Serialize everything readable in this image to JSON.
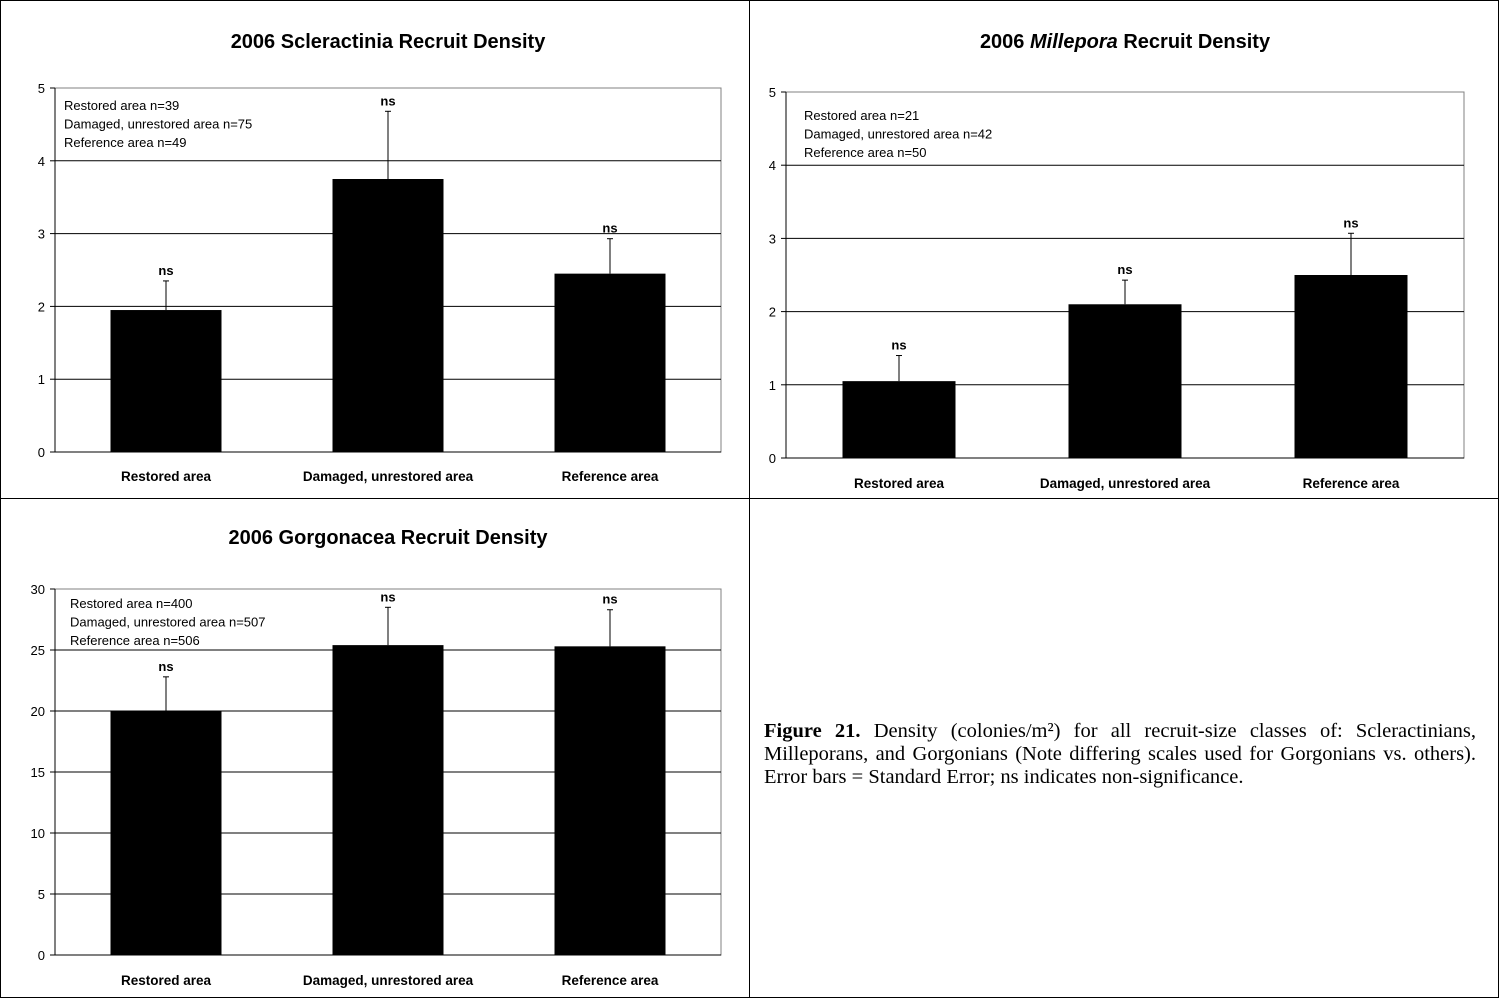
{
  "chart_data": [
    {
      "type": "bar",
      "title_parts": [
        "2006 ",
        "Scleractinia",
        " Recruit Density"
      ],
      "title_italic_index": -1,
      "categories": [
        "Restored area",
        "Damaged, unrestored area",
        "Reference area"
      ],
      "values": [
        1.95,
        3.75,
        2.45
      ],
      "error": [
        0.4,
        0.93,
        0.48
      ],
      "bar_labels": [
        "ns",
        "ns",
        "ns"
      ],
      "ylim": [
        0,
        5
      ],
      "yticks": [
        0,
        1,
        2,
        3,
        4,
        5
      ],
      "annotations": [
        "Restored area n=39",
        "Damaged, unrestored area n=75",
        "Reference area n=49"
      ],
      "grid": true,
      "bar_color": "#000000"
    },
    {
      "type": "bar",
      "title_parts": [
        "2006 ",
        "Millepora",
        " Recruit Density"
      ],
      "title_italic_index": 1,
      "categories": [
        "Restored area",
        "Damaged, unrestored area",
        "Reference area"
      ],
      "values": [
        1.05,
        2.1,
        2.5
      ],
      "error": [
        0.35,
        0.33,
        0.57
      ],
      "bar_labels": [
        "ns",
        "ns",
        "ns"
      ],
      "ylim": [
        0,
        5
      ],
      "yticks": [
        0,
        1,
        2,
        3,
        4,
        5
      ],
      "annotations": [
        "Restored area n=21",
        "Damaged, unrestored area n=42",
        "Reference area n=50"
      ],
      "grid": true,
      "bar_color": "#000000"
    },
    {
      "type": "bar",
      "title_parts": [
        "2006 ",
        "Gorgonacea",
        " Recruit Density"
      ],
      "title_italic_index": -1,
      "categories": [
        "Restored area",
        "Damaged, unrestored area",
        "Reference area"
      ],
      "values": [
        20.0,
        25.4,
        25.3
      ],
      "error": [
        2.8,
        3.1,
        3.0
      ],
      "bar_labels": [
        "ns",
        "ns",
        "ns"
      ],
      "ylim": [
        0,
        30
      ],
      "yticks": [
        0,
        5,
        10,
        15,
        20,
        25,
        30
      ],
      "annotations": [
        "Restored area n=400",
        "Damaged, unrestored area n=507",
        "Reference area n=506"
      ],
      "grid": true,
      "bar_color": "#000000"
    }
  ],
  "caption": {
    "label": "Figure 21.",
    "text": "Density (colonies/m²) for all recruit-size classes of:    Scleractinians, Milleporans, and Gorgonians (Note differing scales used for Gorgonians vs. others). Error bars = Standard Error; ns indicates non-significance."
  }
}
